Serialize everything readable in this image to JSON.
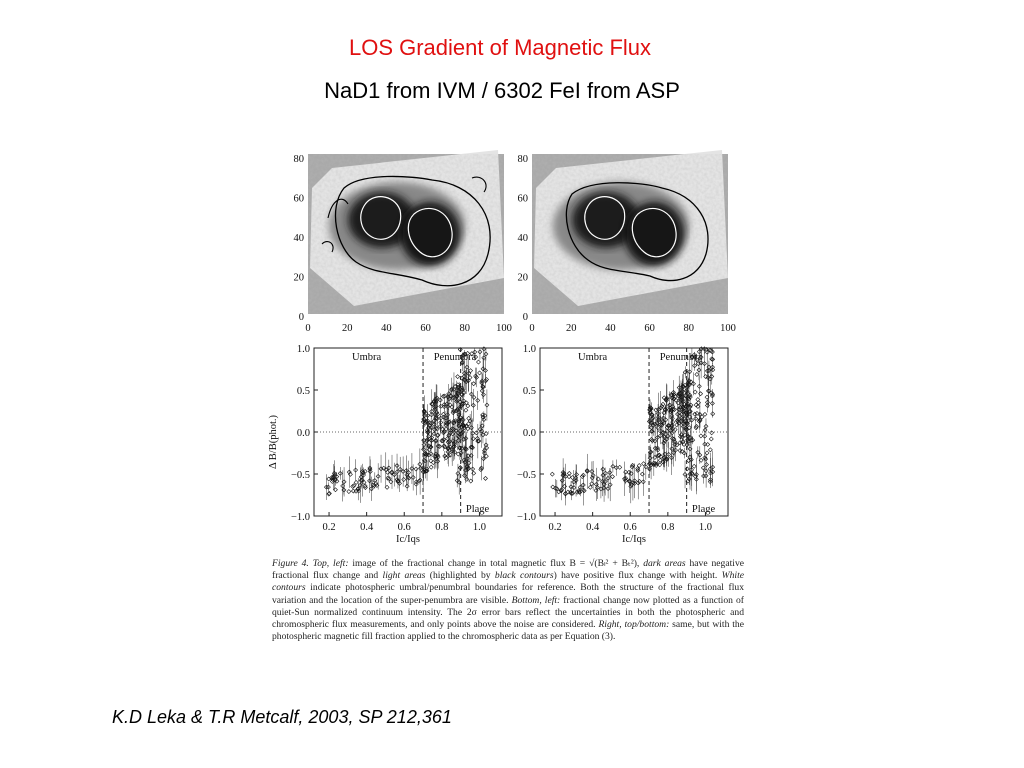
{
  "slide": {
    "title": "LOS  Gradient of Magnetic Flux",
    "subtitle": "NaD1 from IVM  /  6302 FeI from ASP",
    "citation": "K.D  Leka & T.R  Metcalf, 2003, SP 212,361",
    "title_color": "#e01010"
  },
  "figure": {
    "image_axes": {
      "x_ticks": [
        "0",
        "20",
        "40",
        "60",
        "80",
        "100"
      ],
      "y_ticks": [
        "80",
        "60",
        "40",
        "20",
        "0"
      ]
    },
    "scatter_axes": {
      "y_ticks": [
        "1.0",
        "0.5",
        "0.0",
        "−0.5",
        "−1.0"
      ],
      "x_ticks": [
        "0.2",
        "0.4",
        "0.6",
        "0.8",
        "1.0"
      ],
      "xlabel": "Ic/Iqs",
      "ylabel": "Δ B/B(phot.)",
      "labels": {
        "umbra": "Umbra",
        "penumbra": "Penumbra",
        "plage": "Plage"
      }
    },
    "caption": {
      "fig_label": "Figure 4.",
      "part1_em": "Top, left:",
      "part1": " image of the fractional change in total magnetic flux ",
      "formula": "B = √(Bₗ² + Bₜ²)",
      "part2": ", ",
      "part2_em": "dark areas",
      "part3": " have negative fractional flux change and ",
      "part3_em": "light areas",
      "part4": " (highlighted by ",
      "part4_em": "black contours",
      "part5": ") have positive flux change with height. ",
      "part5_em": "White contours",
      "part6": " indicate photospheric umbral/penumbral boundaries for reference. Both the structure of the fractional flux variation and the location of the super-penumbra are visible. ",
      "part6_em": "Bottom, left:",
      "part7": " fractional change now plotted as a function of quiet-Sun normalized continuum intensity. The 2σ error bars reflect the uncertainties in both the photospheric and chromospheric flux measurements, and only points above the noise are considered. ",
      "part7_em": "Right, top/bottom:",
      "part8": " same, but with the photospheric magnetic fill fraction applied to the chromospheric data as per Equation (3)."
    }
  }
}
